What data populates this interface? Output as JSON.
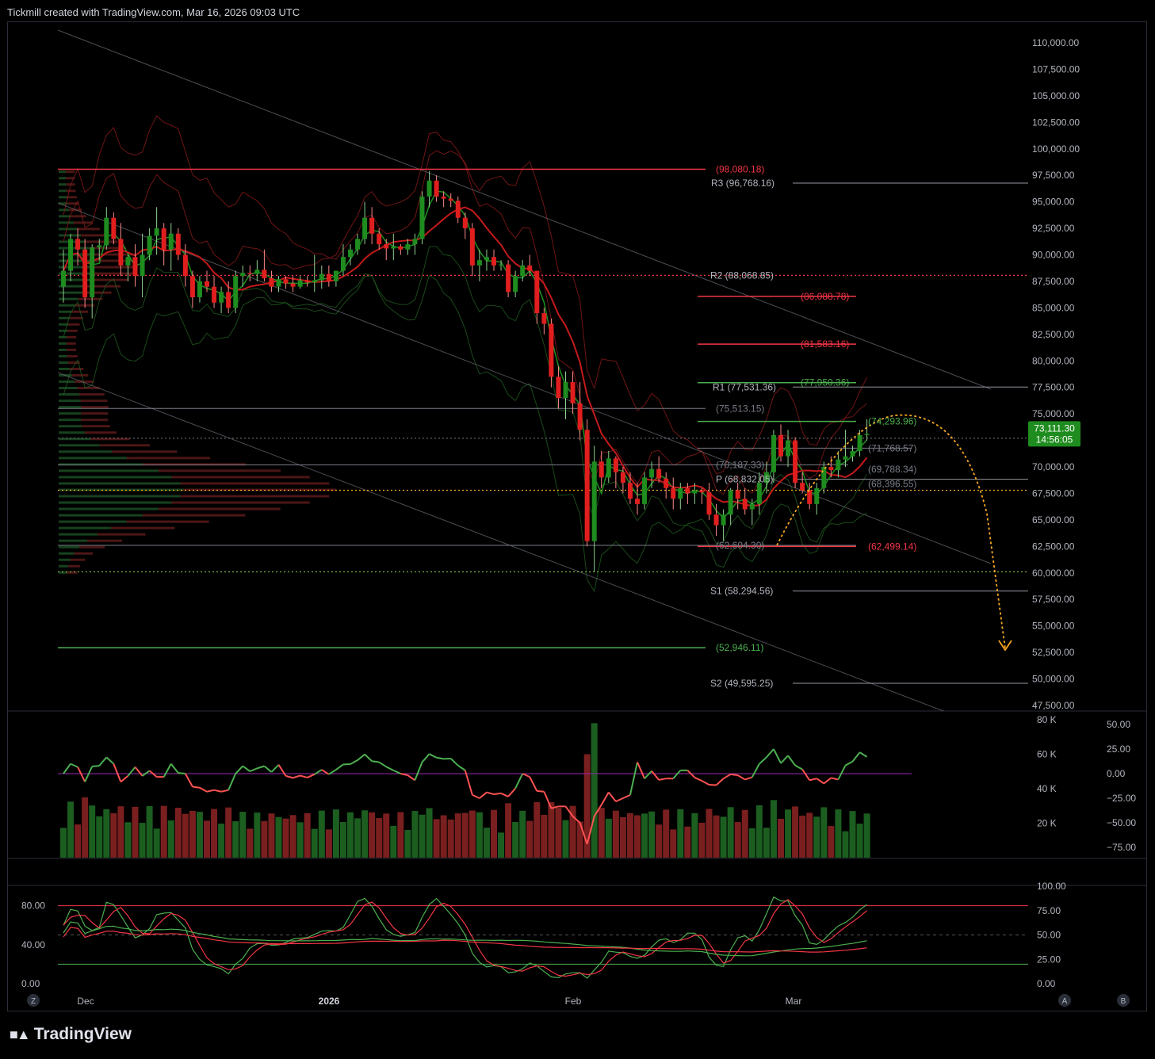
{
  "header": {
    "title": "Tickmill created with TradingView.com, Mar 16, 2026 09:03 UTC"
  },
  "brand": {
    "logo_icon": "tradingview-logo-icon",
    "name": "TradingView"
  },
  "price_axis": [
    "110,000.00",
    "107,500.00",
    "105,000.00",
    "102,500.00",
    "100,000.00",
    "97,500.00",
    "95,000.00",
    "92,500.00",
    "90,000.00",
    "87,500.00",
    "85,000.00",
    "82,500.00",
    "80,000.00",
    "77,500.00",
    "75,000.00",
    "72,500.00",
    "70,000.00",
    "67,500.00",
    "65,000.00",
    "62,500.00",
    "60,000.00",
    "57,500.00",
    "55,000.00",
    "52,500.00",
    "50,000.00",
    "47,500.00"
  ],
  "current_price": {
    "price": "73,111.30",
    "countdown": "14:56:05",
    "color": "#089981"
  },
  "level_labels": [
    {
      "text": "(98,080.18)",
      "color": "#f23645"
    },
    {
      "text": "R3 (96,768.16)",
      "color": "#b2b5be"
    },
    {
      "text": "R2 (88,068.85)",
      "color": "#b2b5be"
    },
    {
      "text": "(86,088.78)",
      "color": "#f23645"
    },
    {
      "text": "(81,583.16)",
      "color": "#f23645"
    },
    {
      "text": "(77,950.36)",
      "color": "#4caf50"
    },
    {
      "text": "R1 (77,531.36)",
      "color": "#b2b5be"
    },
    {
      "text": "(75,513.15)",
      "color": "#787b86"
    },
    {
      "text": "(74,293.96)",
      "color": "#4caf50"
    },
    {
      "text": "(71,768.57)",
      "color": "#787b86"
    },
    {
      "text": "(70,187.33)",
      "color": "#787b86"
    },
    {
      "text": "(69,788.34)",
      "color": "#787b86"
    },
    {
      "text": "P (68,832.05)",
      "color": "#b2b5be"
    },
    {
      "text": "(68,396.55)",
      "color": "#787b86"
    },
    {
      "text": "(62,604.30)",
      "color": "#787b86"
    },
    {
      "text": "(62,499.14)",
      "color": "#f23645"
    },
    {
      "text": "S1 (58,294.56)",
      "color": "#b2b5be"
    },
    {
      "text": "(52,946.11)",
      "color": "#4caf50"
    },
    {
      "text": "S2 (49,595.25)",
      "color": "#b2b5be"
    }
  ],
  "volume_axis": [
    "80 K",
    "60 K",
    "40 K",
    "20 K"
  ],
  "momentum_axis": [
    "50.00",
    "25.00",
    "0.00",
    "−25.00",
    "−50.00",
    "−75.00"
  ],
  "osc_left_axis": [
    "80.00",
    "40.00",
    "0.00"
  ],
  "osc_right_axis": [
    "100.00",
    "75.00",
    "50.00",
    "25.00",
    "0.00"
  ],
  "time_axis": {
    "dec": "Dec",
    "y2026": "2026",
    "feb": "Feb",
    "mar": "Mar"
  },
  "corner_buttons": {
    "z": "Z",
    "a": "A",
    "b": "B"
  },
  "colors": {
    "bull": "#089981",
    "bear": "#f23645",
    "bull_candle": "#1e8c1e",
    "bear_candle": "#e01e1e",
    "projection": "#f5a623"
  },
  "chart_data": {
    "type": "candlestick",
    "symbol_timeframe": "daily",
    "ylim": [
      47500,
      110000
    ],
    "candles": [
      {
        "date": "2025-11-24",
        "o": 87000,
        "h": 90500,
        "l": 85500,
        "c": 88500
      },
      {
        "date": "2025-11-25",
        "o": 88500,
        "h": 92000,
        "l": 87500,
        "c": 91500
      },
      {
        "date": "2025-11-26",
        "o": 91500,
        "h": 92500,
        "l": 89000,
        "c": 90500
      },
      {
        "date": "2025-11-27",
        "o": 90500,
        "h": 91500,
        "l": 85000,
        "c": 86000
      },
      {
        "date": "2025-11-28",
        "o": 86000,
        "h": 91000,
        "l": 84000,
        "c": 90700
      },
      {
        "date": "2025-11-29",
        "o": 90700,
        "h": 91500,
        "l": 89500,
        "c": 90900
      },
      {
        "date": "2025-11-30",
        "o": 90900,
        "h": 94500,
        "l": 90500,
        "c": 93500
      },
      {
        "date": "2025-12-01",
        "o": 93500,
        "h": 94000,
        "l": 91000,
        "c": 91500
      },
      {
        "date": "2025-12-02",
        "o": 91500,
        "h": 93000,
        "l": 88000,
        "c": 89000
      },
      {
        "date": "2025-12-03",
        "o": 89000,
        "h": 90000,
        "l": 87500,
        "c": 89800
      },
      {
        "date": "2025-12-04",
        "o": 89800,
        "h": 91000,
        "l": 87000,
        "c": 88000
      },
      {
        "date": "2025-12-05",
        "o": 88000,
        "h": 92000,
        "l": 86000,
        "c": 90000
      },
      {
        "date": "2025-12-06",
        "o": 90000,
        "h": 92500,
        "l": 89500,
        "c": 91800
      },
      {
        "date": "2025-12-07",
        "o": 91800,
        "h": 94500,
        "l": 90000,
        "c": 92500
      },
      {
        "date": "2025-12-08",
        "o": 92500,
        "h": 93000,
        "l": 89000,
        "c": 90500
      },
      {
        "date": "2025-12-09",
        "o": 90500,
        "h": 93000,
        "l": 88500,
        "c": 92000
      },
      {
        "date": "2025-12-10",
        "o": 92000,
        "h": 92500,
        "l": 89500,
        "c": 90000
      },
      {
        "date": "2025-12-11",
        "o": 90000,
        "h": 91000,
        "l": 87000,
        "c": 88000
      },
      {
        "date": "2025-12-12",
        "o": 88000,
        "h": 88500,
        "l": 85000,
        "c": 86000
      },
      {
        "date": "2025-12-13",
        "o": 86000,
        "h": 88000,
        "l": 85500,
        "c": 87500
      },
      {
        "date": "2025-12-14",
        "o": 87500,
        "h": 88500,
        "l": 86500,
        "c": 87000
      },
      {
        "date": "2025-12-15",
        "o": 87000,
        "h": 88000,
        "l": 85000,
        "c": 85500
      },
      {
        "date": "2025-12-16",
        "o": 85500,
        "h": 87000,
        "l": 84500,
        "c": 86500
      },
      {
        "date": "2025-12-17",
        "o": 86500,
        "h": 87500,
        "l": 84500,
        "c": 85000
      },
      {
        "date": "2025-12-18",
        "o": 85000,
        "h": 88500,
        "l": 84500,
        "c": 88000
      },
      {
        "date": "2025-12-19",
        "o": 88000,
        "h": 89000,
        "l": 87000,
        "c": 88300
      },
      {
        "date": "2025-12-20",
        "o": 88300,
        "h": 89000,
        "l": 87500,
        "c": 88200
      },
      {
        "date": "2025-12-21",
        "o": 88200,
        "h": 89500,
        "l": 87500,
        "c": 88600
      },
      {
        "date": "2025-12-22",
        "o": 88600,
        "h": 90500,
        "l": 87500,
        "c": 87800
      },
      {
        "date": "2025-12-23",
        "o": 87800,
        "h": 88500,
        "l": 86500,
        "c": 87000
      },
      {
        "date": "2025-12-24",
        "o": 87000,
        "h": 88000,
        "l": 86500,
        "c": 87700
      },
      {
        "date": "2025-12-25",
        "o": 87700,
        "h": 88000,
        "l": 86800,
        "c": 87300
      },
      {
        "date": "2025-12-26",
        "o": 87300,
        "h": 88000,
        "l": 86500,
        "c": 87000
      },
      {
        "date": "2025-12-27",
        "o": 87000,
        "h": 88000,
        "l": 86800,
        "c": 87600
      },
      {
        "date": "2025-12-28",
        "o": 87600,
        "h": 88000,
        "l": 87000,
        "c": 87400
      },
      {
        "date": "2025-12-29",
        "o": 87400,
        "h": 90000,
        "l": 86500,
        "c": 87600
      },
      {
        "date": "2025-12-30",
        "o": 87600,
        "h": 89000,
        "l": 86800,
        "c": 88200
      },
      {
        "date": "2025-12-31",
        "o": 88200,
        "h": 89000,
        "l": 87000,
        "c": 87500
      },
      {
        "date": "2026-01-01",
        "o": 87500,
        "h": 88500,
        "l": 87000,
        "c": 88500
      },
      {
        "date": "2026-01-02",
        "o": 88500,
        "h": 91000,
        "l": 88000,
        "c": 89800
      },
      {
        "date": "2026-01-03",
        "o": 89800,
        "h": 91000,
        "l": 89000,
        "c": 90500
      },
      {
        "date": "2026-01-04",
        "o": 90500,
        "h": 92000,
        "l": 90000,
        "c": 91500
      },
      {
        "date": "2026-01-05",
        "o": 91500,
        "h": 95000,
        "l": 91000,
        "c": 93500
      },
      {
        "date": "2026-01-06",
        "o": 93500,
        "h": 94500,
        "l": 91000,
        "c": 92000
      },
      {
        "date": "2026-01-07",
        "o": 92000,
        "h": 92500,
        "l": 90500,
        "c": 91000
      },
      {
        "date": "2026-01-08",
        "o": 91000,
        "h": 91500,
        "l": 89500,
        "c": 90600
      },
      {
        "date": "2026-01-09",
        "o": 90600,
        "h": 92000,
        "l": 89500,
        "c": 90800
      },
      {
        "date": "2026-01-10",
        "o": 90800,
        "h": 91000,
        "l": 90000,
        "c": 90500
      },
      {
        "date": "2026-01-11",
        "o": 90500,
        "h": 91500,
        "l": 90000,
        "c": 91000
      },
      {
        "date": "2026-01-12",
        "o": 91000,
        "h": 92000,
        "l": 90000,
        "c": 91500
      },
      {
        "date": "2026-01-13",
        "o": 91500,
        "h": 96000,
        "l": 91000,
        "c": 95500
      },
      {
        "date": "2026-01-14",
        "o": 95500,
        "h": 97900,
        "l": 94500,
        "c": 97000
      },
      {
        "date": "2026-01-15",
        "o": 97000,
        "h": 97500,
        "l": 95000,
        "c": 95500
      },
      {
        "date": "2026-01-16",
        "o": 95500,
        "h": 96000,
        "l": 94500,
        "c": 95300
      },
      {
        "date": "2026-01-17",
        "o": 95300,
        "h": 95800,
        "l": 94500,
        "c": 95100
      },
      {
        "date": "2026-01-18",
        "o": 95100,
        "h": 95500,
        "l": 93000,
        "c": 93500
      },
      {
        "date": "2026-01-19",
        "o": 93500,
        "h": 94000,
        "l": 91500,
        "c": 92500
      },
      {
        "date": "2026-01-20",
        "o": 92500,
        "h": 93000,
        "l": 88000,
        "c": 89000
      },
      {
        "date": "2026-01-21",
        "o": 89000,
        "h": 90500,
        "l": 87500,
        "c": 89500
      },
      {
        "date": "2026-01-22",
        "o": 89500,
        "h": 90500,
        "l": 88500,
        "c": 89800
      },
      {
        "date": "2026-01-23",
        "o": 89800,
        "h": 90500,
        "l": 88500,
        "c": 89000
      },
      {
        "date": "2026-01-24",
        "o": 89000,
        "h": 89500,
        "l": 88500,
        "c": 89100
      },
      {
        "date": "2026-01-25",
        "o": 89100,
        "h": 89500,
        "l": 86000,
        "c": 86500
      },
      {
        "date": "2026-01-26",
        "o": 86500,
        "h": 88500,
        "l": 86000,
        "c": 88000
      },
      {
        "date": "2026-01-27",
        "o": 88000,
        "h": 89500,
        "l": 87500,
        "c": 89000
      },
      {
        "date": "2026-01-28",
        "o": 89000,
        "h": 90000,
        "l": 88000,
        "c": 88500
      },
      {
        "date": "2026-01-29",
        "o": 88500,
        "h": 88500,
        "l": 83500,
        "c": 84500
      },
      {
        "date": "2026-01-30",
        "o": 84500,
        "h": 85000,
        "l": 82500,
        "c": 83500
      },
      {
        "date": "2026-01-31",
        "o": 83500,
        "h": 84000,
        "l": 77500,
        "c": 78500
      },
      {
        "date": "2026-02-01",
        "o": 78500,
        "h": 79500,
        "l": 75500,
        "c": 76500
      },
      {
        "date": "2026-02-02",
        "o": 76500,
        "h": 79000,
        "l": 74500,
        "c": 78000
      },
      {
        "date": "2026-02-03",
        "o": 78000,
        "h": 79000,
        "l": 75000,
        "c": 76000
      },
      {
        "date": "2026-02-04",
        "o": 76000,
        "h": 78000,
        "l": 72500,
        "c": 73500
      },
      {
        "date": "2026-02-05",
        "o": 73500,
        "h": 74500,
        "l": 62500,
        "c": 63000
      },
      {
        "date": "2026-02-06",
        "o": 63000,
        "h": 72000,
        "l": 60100,
        "c": 70500
      },
      {
        "date": "2026-02-07",
        "o": 70500,
        "h": 71500,
        "l": 68000,
        "c": 69000
      },
      {
        "date": "2026-02-08",
        "o": 69000,
        "h": 71500,
        "l": 68500,
        "c": 70800
      },
      {
        "date": "2026-02-09",
        "o": 70800,
        "h": 71000,
        "l": 68000,
        "c": 69500
      },
      {
        "date": "2026-02-10",
        "o": 69500,
        "h": 70000,
        "l": 67500,
        "c": 68500
      },
      {
        "date": "2026-02-11",
        "o": 68500,
        "h": 69500,
        "l": 66500,
        "c": 67000
      },
      {
        "date": "2026-02-12",
        "o": 67000,
        "h": 68500,
        "l": 65500,
        "c": 66500
      },
      {
        "date": "2026-02-13",
        "o": 66500,
        "h": 69500,
        "l": 66000,
        "c": 69000
      },
      {
        "date": "2026-02-14",
        "o": 69000,
        "h": 70500,
        "l": 68000,
        "c": 69800
      },
      {
        "date": "2026-02-15",
        "o": 69800,
        "h": 71000,
        "l": 68500,
        "c": 68900
      },
      {
        "date": "2026-02-16",
        "o": 68900,
        "h": 69500,
        "l": 67000,
        "c": 68000
      },
      {
        "date": "2026-02-17",
        "o": 68000,
        "h": 69000,
        "l": 66000,
        "c": 67000
      },
      {
        "date": "2026-02-18",
        "o": 67000,
        "h": 68500,
        "l": 66000,
        "c": 68000
      },
      {
        "date": "2026-02-19",
        "o": 68000,
        "h": 68500,
        "l": 66500,
        "c": 67500
      },
      {
        "date": "2026-02-20",
        "o": 67500,
        "h": 68500,
        "l": 66500,
        "c": 67800
      },
      {
        "date": "2026-02-21",
        "o": 67800,
        "h": 68000,
        "l": 66500,
        "c": 67600
      },
      {
        "date": "2026-02-22",
        "o": 67600,
        "h": 68500,
        "l": 65000,
        "c": 65500
      },
      {
        "date": "2026-02-23",
        "o": 65500,
        "h": 66500,
        "l": 63500,
        "c": 64500
      },
      {
        "date": "2026-02-24",
        "o": 64500,
        "h": 66000,
        "l": 63000,
        "c": 65500
      },
      {
        "date": "2026-02-25",
        "o": 65500,
        "h": 68000,
        "l": 64500,
        "c": 67800
      },
      {
        "date": "2026-02-26",
        "o": 67800,
        "h": 68500,
        "l": 66000,
        "c": 67000
      },
      {
        "date": "2026-02-27",
        "o": 67000,
        "h": 68000,
        "l": 65500,
        "c": 66000
      },
      {
        "date": "2026-02-28",
        "o": 66000,
        "h": 67000,
        "l": 64500,
        "c": 66500
      },
      {
        "date": "2026-03-01",
        "o": 66500,
        "h": 69500,
        "l": 65500,
        "c": 68500
      },
      {
        "date": "2026-03-02",
        "o": 68500,
        "h": 70500,
        "l": 67500,
        "c": 69500
      },
      {
        "date": "2026-03-03",
        "o": 69500,
        "h": 73500,
        "l": 68500,
        "c": 73000
      },
      {
        "date": "2026-03-04",
        "o": 73000,
        "h": 74000,
        "l": 70500,
        "c": 71000
      },
      {
        "date": "2026-03-05",
        "o": 71000,
        "h": 73500,
        "l": 70000,
        "c": 72500
      },
      {
        "date": "2026-03-06",
        "o": 72500,
        "h": 72800,
        "l": 68000,
        "c": 68500
      },
      {
        "date": "2026-03-07",
        "o": 68500,
        "h": 69500,
        "l": 67500,
        "c": 67800
      },
      {
        "date": "2026-03-08",
        "o": 67800,
        "h": 68500,
        "l": 66000,
        "c": 66500
      },
      {
        "date": "2026-03-09",
        "o": 66500,
        "h": 68500,
        "l": 65500,
        "c": 68000
      },
      {
        "date": "2026-03-10",
        "o": 68000,
        "h": 70500,
        "l": 67500,
        "c": 70000
      },
      {
        "date": "2026-03-11",
        "o": 70000,
        "h": 71000,
        "l": 69000,
        "c": 69700
      },
      {
        "date": "2026-03-12",
        "o": 69700,
        "h": 71500,
        "l": 69000,
        "c": 70700
      },
      {
        "date": "2026-03-13",
        "o": 70700,
        "h": 73500,
        "l": 70000,
        "c": 71000
      },
      {
        "date": "2026-03-14",
        "o": 71000,
        "h": 72000,
        "l": 70500,
        "c": 71500
      },
      {
        "date": "2026-03-15",
        "o": 71500,
        "h": 73500,
        "l": 71000,
        "c": 73000
      },
      {
        "date": "2026-03-16",
        "o": 73000,
        "h": 74500,
        "l": 72500,
        "c": 73111.3
      }
    ]
  }
}
